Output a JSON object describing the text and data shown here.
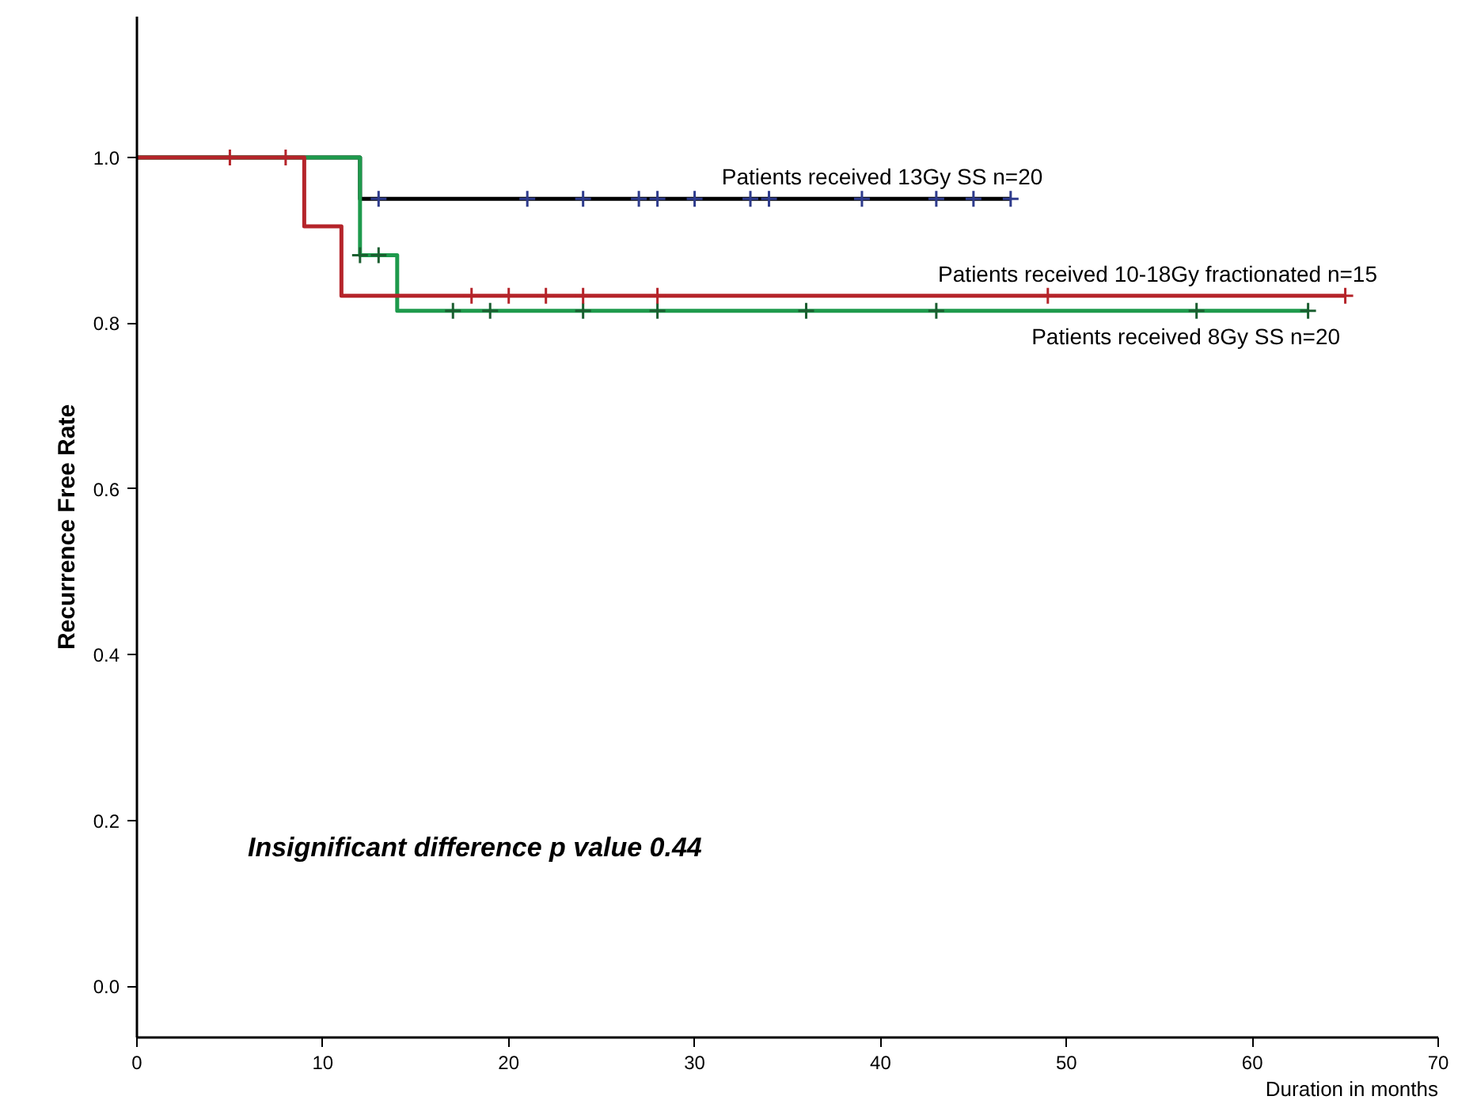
{
  "chart_data": {
    "type": "step",
    "xlabel": "Duration in months",
    "ylabel": "Recurrence Free Rate",
    "xlim": [
      0,
      70
    ],
    "ylim": [
      -0.062,
      1.17
    ],
    "xticks": [
      0,
      10,
      20,
      30,
      40,
      50,
      60,
      70
    ],
    "yticks": [
      {
        "value": 0,
        "label": "0.0"
      },
      {
        "value": 0.2,
        "label": "0.2"
      },
      {
        "value": 0.4,
        "label": "0.4"
      },
      {
        "value": 0.6,
        "label": "0.6"
      },
      {
        "value": 0.8,
        "label": "0.8"
      },
      {
        "value": 1,
        "label": "1.0"
      }
    ],
    "grid": false,
    "line_style": "solid",
    "series": [
      {
        "name": "Patients received 13Gy SS   n=20",
        "color": "#000000",
        "x": [
          0,
          12,
          47
        ],
        "values": [
          1.0,
          0.95,
          0.95
        ]
      },
      {
        "name": "Patients received 8Gy SS   n=20",
        "color": "#1e9a4c",
        "x": [
          0,
          12,
          14,
          63
        ],
        "values": [
          1.0,
          0.882,
          0.815,
          0.815
        ]
      },
      {
        "name": "Patients received 10-18Gy fractionated   n=15",
        "color": "#b5242a",
        "x": [
          0,
          9,
          11,
          65
        ],
        "values": [
          1.0,
          0.917,
          0.833,
          0.833
        ]
      },
      {
        "type": "scatter",
        "marker": "cross",
        "color": "#2e3b8c",
        "x": [
          13,
          21,
          24,
          27,
          28,
          30,
          33,
          34,
          39,
          43,
          45,
          47
        ],
        "values": [
          0.95,
          0.95,
          0.95,
          0.95,
          0.95,
          0.95,
          0.95,
          0.95,
          0.95,
          0.95,
          0.95,
          0.95
        ]
      },
      {
        "type": "scatter",
        "marker": "cross",
        "color": "#1b5e30",
        "x": [
          12,
          13,
          17,
          19,
          24,
          28,
          36,
          43,
          57,
          63
        ],
        "values": [
          0.882,
          0.882,
          0.815,
          0.815,
          0.815,
          0.815,
          0.815,
          0.815,
          0.815,
          0.815
        ]
      },
      {
        "type": "scatter",
        "marker": "cross",
        "color": "#b5242a",
        "x": [
          5,
          8,
          18,
          20,
          22,
          24,
          28,
          49,
          65
        ],
        "values": [
          1.0,
          1.0,
          0.833,
          0.833,
          0.833,
          0.833,
          0.833,
          0.833,
          0.833
        ]
      }
    ],
    "annotations": [
      "Insignificant difference p value 0.44"
    ]
  }
}
